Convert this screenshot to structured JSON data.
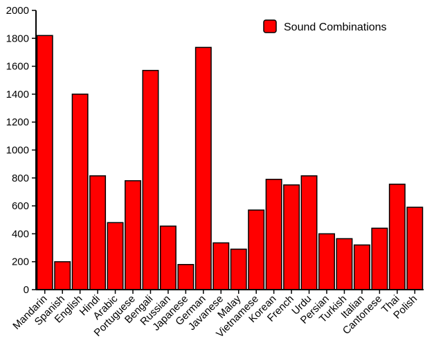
{
  "chart_data": {
    "type": "bar",
    "title": "",
    "xlabel": "",
    "ylabel": "",
    "categories": [
      "Mandarin",
      "Spanish",
      "English",
      "Hindi",
      "Arabic",
      "Portuguese",
      "Bengali",
      "Russian",
      "Japanese",
      "German",
      "Javanese",
      "Malay",
      "Vietnamese",
      "Korean",
      "French",
      "Urdu",
      "Persian",
      "Turkish",
      "Italian",
      "Cantonese",
      "Thai",
      "Polish"
    ],
    "series": [
      {
        "name": "Sound Combinations",
        "color": "#ff0000",
        "values": [
          1820,
          200,
          1400,
          815,
          480,
          780,
          1570,
          455,
          180,
          1735,
          335,
          290,
          570,
          790,
          750,
          815,
          400,
          365,
          320,
          440,
          755,
          590
        ]
      }
    ],
    "ylim": [
      0,
      2000
    ],
    "yticks": [
      0,
      200,
      400,
      600,
      800,
      1000,
      1200,
      1400,
      1600,
      1800,
      2000
    ],
    "grid": false,
    "legend_position": "top-right"
  }
}
